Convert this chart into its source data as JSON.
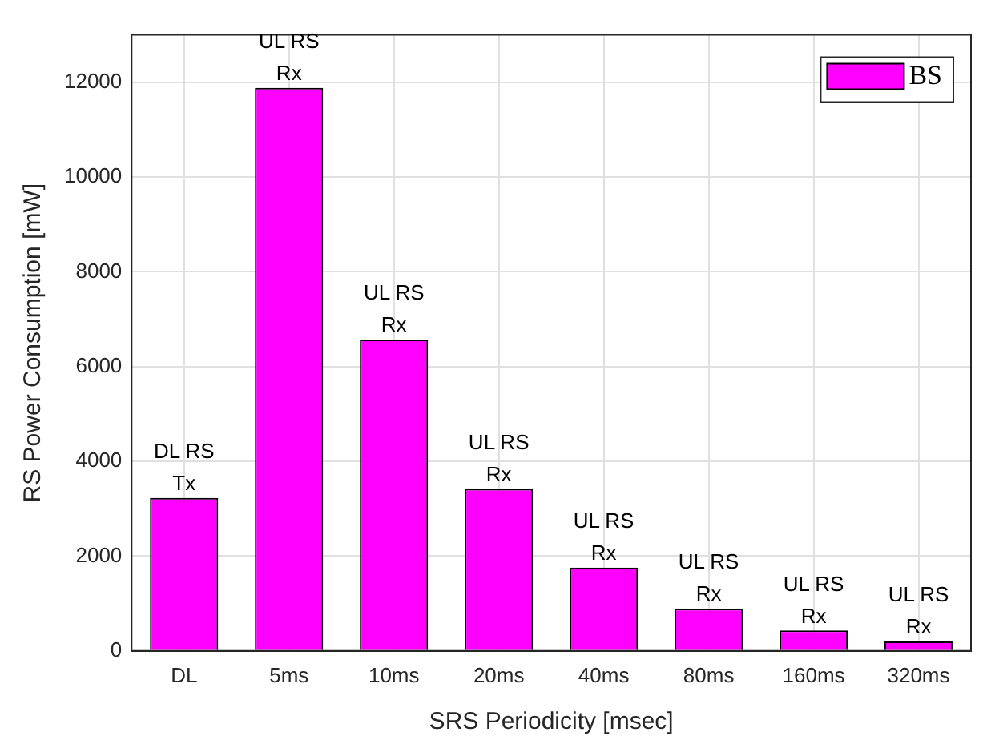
{
  "chart_data": {
    "type": "bar",
    "xlabel": "SRS Periodicity [msec]",
    "ylabel": "RS Power Consumption [mW]",
    "categories": [
      "DL",
      "5ms",
      "10ms",
      "20ms",
      "40ms",
      "80ms",
      "160ms",
      "320ms"
    ],
    "series": [
      {
        "name": "BS",
        "color": "#ff00ff",
        "values": [
          3230,
          11880,
          6570,
          3420,
          1760,
          890,
          430,
          200
        ]
      }
    ],
    "ylim": [
      0,
      13000
    ],
    "yticks": [
      0,
      2000,
      4000,
      6000,
      8000,
      10000,
      12000
    ],
    "grid": true,
    "legend": "top right",
    "annotations": [
      {
        "text": "DL RS\nTx",
        "x": "DL",
        "y": 3230
      },
      {
        "text": "UL RS\nRx",
        "x": "5ms",
        "y": 11880
      },
      {
        "text": "UL RS\nRx",
        "x": "10ms",
        "y": 6570
      },
      {
        "text": "UL RS\nRx",
        "x": "20ms",
        "y": 3420
      },
      {
        "text": "UL RS\nRx",
        "x": "40ms",
        "y": 1760
      },
      {
        "text": "UL RS\nRx",
        "x": "80ms",
        "y": 890
      },
      {
        "text": "UL RS\nRx",
        "x": "160ms",
        "y": 430
      },
      {
        "text": "UL RS\nRx",
        "x": "320ms",
        "y": 200
      }
    ]
  }
}
